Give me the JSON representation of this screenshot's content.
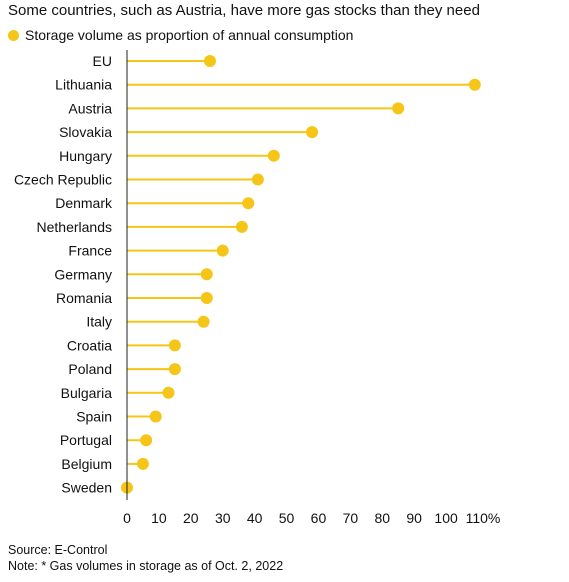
{
  "colors": {
    "accent": "#F5C518",
    "axis": "#222222",
    "text": "#111111"
  },
  "chart_data": {
    "type": "lollipop",
    "title": "Some countries, such as Austria, have more gas stocks than they need",
    "legend": {
      "placement": "top-left",
      "entries": [
        "Storage volume as proportion of annual consumption"
      ]
    },
    "categories": [
      "EU",
      "Lithuania",
      "Austria",
      "Slovakia",
      "Hungary",
      "Czech Republic",
      "Denmark",
      "Netherlands",
      "France",
      "Germany",
      "Romania",
      "Italy",
      "Croatia",
      "Poland",
      "Bulgaria",
      "Spain",
      "Portugal",
      "Belgium",
      "Sweden"
    ],
    "series": [
      {
        "name": "Storage volume as proportion of annual consumption",
        "values": [
          26,
          109,
          85,
          58,
          46,
          41,
          38,
          36,
          30,
          25,
          25,
          24,
          15,
          15,
          13,
          9,
          6,
          5,
          0
        ]
      }
    ],
    "xlim": [
      0,
      110
    ],
    "x_ticks": [
      0,
      10,
      20,
      30,
      40,
      50,
      60,
      70,
      80,
      90,
      100,
      110
    ],
    "x_tick_labels": [
      "0",
      "10",
      "20",
      "30",
      "40",
      "50",
      "60",
      "70",
      "80",
      "90",
      "100",
      "110%"
    ],
    "grid": false,
    "xlabel": "",
    "ylabel": ""
  },
  "footer": {
    "source": "Source: E-Control",
    "note": "Note: * Gas volumes in storage as of Oct. 2, 2022"
  }
}
